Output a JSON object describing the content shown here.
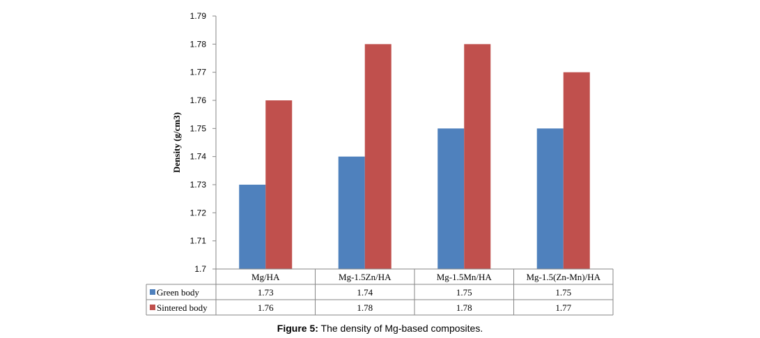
{
  "chart_data": {
    "type": "bar",
    "title": "",
    "ylabel": "Density (g/cm3)",
    "xlabel": "",
    "categories": [
      "Mg/HA",
      "Mg-1.5Zn/HA",
      "Mg-1.5Mn/HA",
      "Mg-1.5(Zn-Mn)/HA"
    ],
    "series": [
      {
        "name": "Green body",
        "values": [
          1.73,
          1.74,
          1.75,
          1.75
        ],
        "color": "#4f81bd"
      },
      {
        "name": "Sintered body",
        "values": [
          1.76,
          1.78,
          1.78,
          1.77
        ],
        "color": "#c0504d"
      }
    ],
    "ylim": [
      1.7,
      1.79
    ],
    "yticks": [
      "1.79",
      "1.78",
      "1.77",
      "1.76",
      "1.75",
      "1.74",
      "1.73",
      "1.72",
      "1.71",
      "1.7"
    ],
    "data_table": true,
    "grid": false,
    "legend": "data-table-left"
  },
  "figure": {
    "caption_label": "Figure 5:",
    "caption_text": " The density of Mg-based composites."
  }
}
